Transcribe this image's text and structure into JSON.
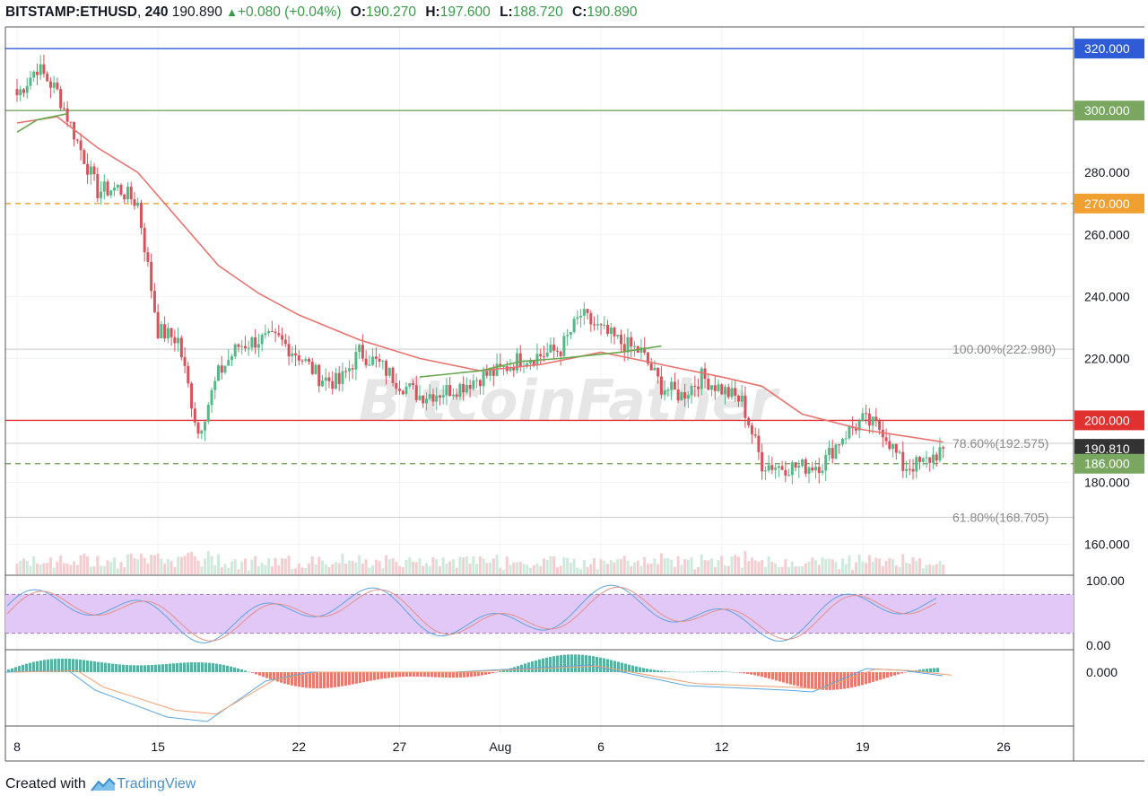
{
  "header": {
    "symbol": "BITSTAMP:ETHUSD",
    "interval": "240",
    "last": "190.890",
    "change": "+0.080",
    "change_pct": "(+0.04%)",
    "o_label": "O:",
    "o": "190.270",
    "h_label": "H:",
    "h": "197.600",
    "l_label": "L:",
    "l": "188.720",
    "c_label": "C:",
    "c": "190.890"
  },
  "watermark": "BitcoinFather",
  "footer": {
    "created": "Created with",
    "brand": "TradingView"
  },
  "colors": {
    "up": "#53b987",
    "down": "#d8525c",
    "ma": "#e8736f",
    "ma2": "#6aa84f",
    "blue_line": "#2f5bd6",
    "green_line": "#7aa760",
    "orange_line": "#f0a030",
    "red_line": "#e03030",
    "stoch_band": "#e2c8f7"
  },
  "chart_data": {
    "type": "candlestick",
    "symbol": "BITSTAMP:ETHUSD",
    "interval": "240",
    "ylim": [
      150,
      327
    ],
    "y_ticks": [
      "320.000",
      "300.000",
      "280.000",
      "270.000",
      "260.000",
      "240.000",
      "220.000",
      "200.000",
      "190.810",
      "186.000",
      "180.000",
      "160.000"
    ],
    "x_ticks": [
      "8",
      "15",
      "22",
      "27",
      "Aug",
      "6",
      "12",
      "19",
      "26"
    ],
    "horizontal_lines": [
      {
        "price": 320.0,
        "label": "320.000",
        "style": "solid",
        "color": "#2f5bd6"
      },
      {
        "price": 300.0,
        "label": "300.000",
        "style": "solid",
        "color": "#7aa760"
      },
      {
        "price": 270.0,
        "label": "270.000",
        "style": "dashed",
        "color": "#f0a030"
      },
      {
        "price": 200.0,
        "label": "200.000",
        "style": "solid",
        "color": "#e03030"
      },
      {
        "price": 186.0,
        "label": "186.000",
        "style": "dashed",
        "color": "#7aa760"
      }
    ],
    "fib_levels": [
      {
        "label": "100.00%(222.980)",
        "price": 222.98
      },
      {
        "label": "78.60%(192.575)",
        "price": 192.575
      },
      {
        "label": "61.80%(168.705)",
        "price": 168.705
      }
    ],
    "current_price": {
      "label": "190.810",
      "price": 190.81
    },
    "price_path": [
      {
        "date": "Jul 8",
        "close": 305
      },
      {
        "date": "Jul 9",
        "close": 314
      },
      {
        "date": "Jul 10",
        "close": 306
      },
      {
        "date": "Jul 11",
        "close": 290
      },
      {
        "date": "Jul 12",
        "close": 274
      },
      {
        "date": "Jul 13",
        "close": 275
      },
      {
        "date": "Jul 14",
        "close": 270
      },
      {
        "date": "Jul 15",
        "close": 229
      },
      {
        "date": "Jul 16",
        "close": 226
      },
      {
        "date": "Jul 17",
        "close": 196
      },
      {
        "date": "Jul 18",
        "close": 215
      },
      {
        "date": "Jul 19",
        "close": 224
      },
      {
        "date": "Jul 20",
        "close": 226
      },
      {
        "date": "Jul 21",
        "close": 226
      },
      {
        "date": "Jul 22",
        "close": 221
      },
      {
        "date": "Jul 23",
        "close": 214
      },
      {
        "date": "Jul 24",
        "close": 212
      },
      {
        "date": "Jul 25",
        "close": 222
      },
      {
        "date": "Jul 26",
        "close": 218
      },
      {
        "date": "Jul 27",
        "close": 212
      },
      {
        "date": "Jul 28",
        "close": 208
      },
      {
        "date": "Jul 29",
        "close": 209
      },
      {
        "date": "Jul 30",
        "close": 211
      },
      {
        "date": "Jul 31",
        "close": 214
      },
      {
        "date": "Aug 1",
        "close": 216
      },
      {
        "date": "Aug 2",
        "close": 220
      },
      {
        "date": "Aug 3",
        "close": 221
      },
      {
        "date": "Aug 4",
        "close": 223
      },
      {
        "date": "Aug 5",
        "close": 234
      },
      {
        "date": "Aug 6",
        "close": 229
      },
      {
        "date": "Aug 7",
        "close": 225
      },
      {
        "date": "Aug 8",
        "close": 222
      },
      {
        "date": "Aug 9",
        "close": 211
      },
      {
        "date": "Aug 10",
        "close": 208
      },
      {
        "date": "Aug 11",
        "close": 214
      },
      {
        "date": "Aug 12",
        "close": 210
      },
      {
        "date": "Aug 13",
        "close": 206
      },
      {
        "date": "Aug 14",
        "close": 186
      },
      {
        "date": "Aug 15",
        "close": 185
      },
      {
        "date": "Aug 16",
        "close": 185
      },
      {
        "date": "Aug 17",
        "close": 186
      },
      {
        "date": "Aug 18",
        "close": 195
      },
      {
        "date": "Aug 19",
        "close": 200
      },
      {
        "date": "Aug 20",
        "close": 197
      },
      {
        "date": "Aug 21",
        "close": 185
      },
      {
        "date": "Aug 22",
        "close": 186
      },
      {
        "date": "Aug 23",
        "close": 190.89
      }
    ],
    "moving_average": [
      {
        "date": "Jul 8",
        "value": 296
      },
      {
        "date": "Jul 10",
        "value": 298
      },
      {
        "date": "Jul 12",
        "value": 288
      },
      {
        "date": "Jul 14",
        "value": 280
      },
      {
        "date": "Jul 16",
        "value": 265
      },
      {
        "date": "Jul 18",
        "value": 250
      },
      {
        "date": "Jul 20",
        "value": 241
      },
      {
        "date": "Jul 22",
        "value": 234
      },
      {
        "date": "Jul 25",
        "value": 226
      },
      {
        "date": "Jul 28",
        "value": 220
      },
      {
        "date": "Jul 31",
        "value": 216
      },
      {
        "date": "Aug 3",
        "value": 218
      },
      {
        "date": "Aug 6",
        "value": 222
      },
      {
        "date": "Aug 9",
        "value": 218
      },
      {
        "date": "Aug 12",
        "value": 214
      },
      {
        "date": "Aug 14",
        "value": 211
      },
      {
        "date": "Aug 16",
        "value": 202
      },
      {
        "date": "Aug 19",
        "value": 197
      },
      {
        "date": "Aug 21",
        "value": 195
      },
      {
        "date": "Aug 23",
        "value": 193
      }
    ],
    "stoch": {
      "ylim": [
        0,
        100
      ],
      "ticks": [
        "100.00",
        "0.00"
      ],
      "band": [
        20,
        80
      ]
    },
    "macd": {
      "ticks": [
        "0.000"
      ]
    }
  }
}
